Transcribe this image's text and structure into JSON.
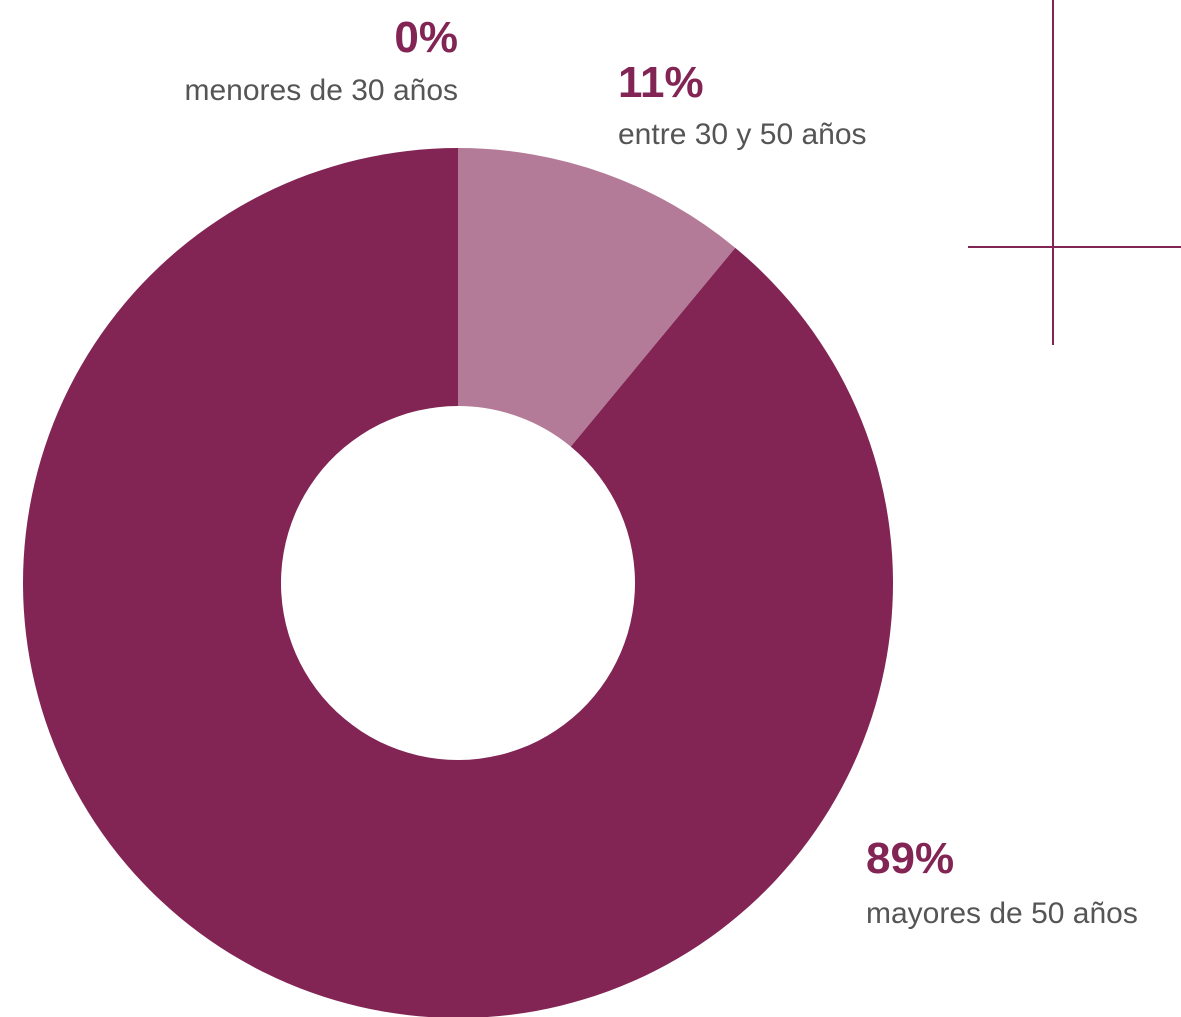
{
  "chart_data": {
    "type": "donut",
    "categories": [
      "menores de 30 años",
      "entre 30 y 50 años",
      "mayores de 50 años"
    ],
    "values": [
      0,
      11,
      89
    ],
    "value_labels": [
      "0%",
      "11%",
      "89%"
    ],
    "colors": [
      "#822454",
      "#b37b97",
      "#822454"
    ]
  }
}
